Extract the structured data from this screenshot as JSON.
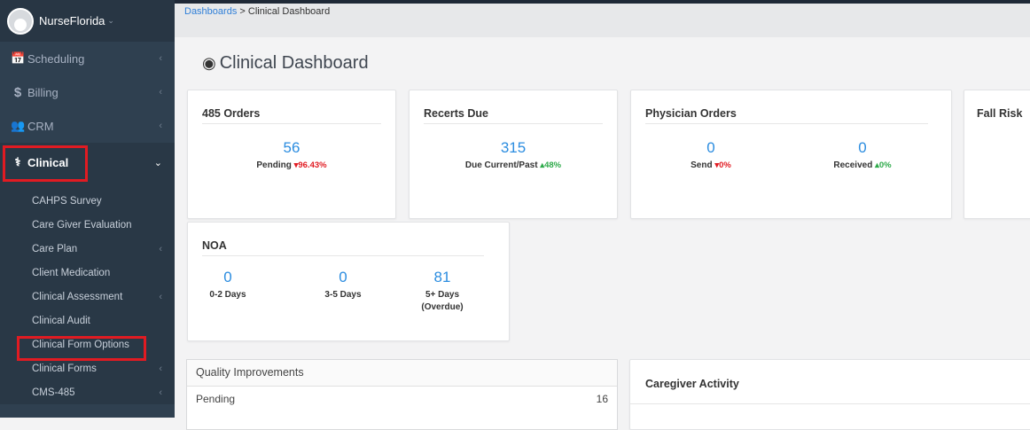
{
  "user": {
    "name": "NurseFlorida"
  },
  "sidebar": {
    "items": [
      {
        "icon": "calendar-plus-icon",
        "label": "Scheduling"
      },
      {
        "icon": "dollar-icon",
        "label": "Billing"
      },
      {
        "icon": "users-icon",
        "label": "CRM"
      },
      {
        "icon": "user-md-icon",
        "label": "Clinical"
      }
    ],
    "sub_items": [
      {
        "label": "CAHPS Survey"
      },
      {
        "label": "Care Giver Evaluation"
      },
      {
        "label": "Care Plan"
      },
      {
        "label": "Client Medication"
      },
      {
        "label": "Clinical Assessment"
      },
      {
        "label": "Clinical Audit"
      },
      {
        "label": "Clinical Form Options"
      },
      {
        "label": "Clinical Forms"
      },
      {
        "label": "CMS-485"
      }
    ]
  },
  "breadcrumb": {
    "link": "Dashboards",
    "sep": " > ",
    "current": "Clinical Dashboard"
  },
  "page": {
    "title": "Clinical Dashboard"
  },
  "cards": {
    "orders485": {
      "title": "485 Orders",
      "value": "56",
      "label": "Pending",
      "delta": "96.43%"
    },
    "recerts": {
      "title": "Recerts Due",
      "value": "315",
      "label": "Due Current/Past",
      "delta": "48%"
    },
    "physician": {
      "title": "Physician Orders",
      "send_value": "0",
      "send_label": "Send",
      "send_delta": "0%",
      "received_value": "0",
      "received_label": "Received",
      "received_delta": "0%"
    },
    "fallrisk": {
      "title": "Fall Risk"
    },
    "noa": {
      "title": "NOA",
      "items": [
        {
          "value": "0",
          "label": "0-2 Days"
        },
        {
          "value": "0",
          "label": "3-5 Days"
        },
        {
          "value": "81",
          "label": "5+ Days (Overdue)"
        }
      ]
    }
  },
  "quality": {
    "title": "Quality Improvements",
    "row_label": "Pending",
    "row_value": "16"
  },
  "caregiver": {
    "title": "Caregiver Activity"
  },
  "colors": {
    "sidebar": "#2f4050",
    "accent": "#2c8de0",
    "down": "#e11b22",
    "up": "#2eaa4a"
  }
}
